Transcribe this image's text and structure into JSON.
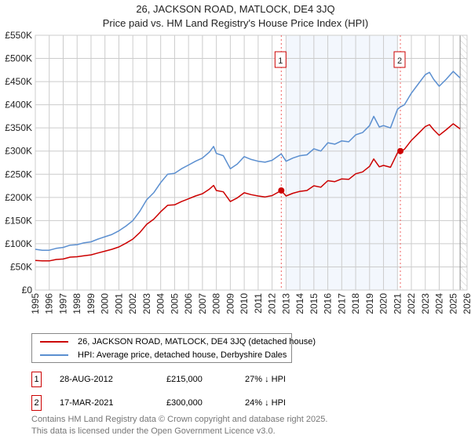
{
  "chart_data": {
    "type": "line",
    "title": "26, JACKSON ROAD, MATLOCK, DE4 3JQ",
    "subtitle": "Price paid vs. HM Land Registry's House Price Index (HPI)",
    "xlim": [
      1995,
      2026
    ],
    "ylim": [
      0,
      550000
    ],
    "x_ticks": [
      "1995",
      "1996",
      "1997",
      "1998",
      "1999",
      "2000",
      "2001",
      "2002",
      "2003",
      "2004",
      "2005",
      "2006",
      "2007",
      "2008",
      "2009",
      "2010",
      "2011",
      "2012",
      "2013",
      "2014",
      "2015",
      "2016",
      "2017",
      "2018",
      "2019",
      "2020",
      "2021",
      "2022",
      "2023",
      "2024",
      "2025",
      "2026"
    ],
    "y_ticks": [
      {
        "v": 0,
        "label": "£0"
      },
      {
        "v": 50000,
        "label": "£50K"
      },
      {
        "v": 100000,
        "label": "£100K"
      },
      {
        "v": 150000,
        "label": "£150K"
      },
      {
        "v": 200000,
        "label": "£200K"
      },
      {
        "v": 250000,
        "label": "£250K"
      },
      {
        "v": 300000,
        "label": "£300K"
      },
      {
        "v": 350000,
        "label": "£350K"
      },
      {
        "v": 400000,
        "label": "£400K"
      },
      {
        "v": 450000,
        "label": "£450K"
      },
      {
        "v": 500000,
        "label": "£500K"
      },
      {
        "v": 550000,
        "label": "£550K"
      }
    ],
    "grid": true,
    "x": [
      1995,
      1995.5,
      1996,
      1996.5,
      1997,
      1997.5,
      1998,
      1998.5,
      1999,
      1999.5,
      2000,
      2000.5,
      2001,
      2001.5,
      2002,
      2002.5,
      2003,
      2003.5,
      2004,
      2004.5,
      2005,
      2005.5,
      2006,
      2006.5,
      2007,
      2007.5,
      2007.8,
      2008,
      2008.5,
      2009,
      2009.5,
      2010,
      2010.5,
      2011,
      2011.5,
      2012,
      2012.66,
      2013,
      2013.5,
      2014,
      2014.5,
      2015,
      2015.5,
      2016,
      2016.5,
      2017,
      2017.5,
      2018,
      2018.5,
      2019,
      2019.3,
      2019.7,
      2020,
      2020.5,
      2021,
      2021.2,
      2021.5,
      2022,
      2022.5,
      2023,
      2023.3,
      2023.6,
      2024,
      2024.5,
      2025,
      2025.5
    ],
    "series": [
      {
        "name": "26, JACKSON ROAD, MATLOCK, DE4 3JQ (detached house)",
        "color": "#cc0000",
        "values": [
          64,
          63,
          63,
          66,
          67,
          71,
          72,
          74,
          76,
          80,
          84,
          88,
          93,
          101,
          110,
          124,
          142,
          153,
          169,
          183,
          184,
          191,
          197,
          203,
          208,
          218,
          226,
          215,
          212,
          191,
          199,
          210,
          206,
          203,
          201,
          204,
          215,
          203,
          209,
          213,
          215,
          225,
          222,
          236,
          234,
          240,
          239,
          251,
          255,
          267,
          283,
          266,
          269,
          265,
          296,
          300,
          304,
          323,
          338,
          353,
          357,
          346,
          334,
          346,
          359,
          348
        ]
      },
      {
        "name": "HPI: Average price, detached house, Derbyshire Dales",
        "color": "#5b8fd0",
        "values": [
          88,
          86,
          86,
          90,
          92,
          97,
          98,
          102,
          104,
          110,
          115,
          120,
          128,
          138,
          150,
          170,
          195,
          210,
          232,
          250,
          252,
          262,
          270,
          278,
          285,
          298,
          310,
          295,
          290,
          262,
          272,
          288,
          282,
          278,
          276,
          280,
          294,
          278,
          285,
          290,
          292,
          305,
          300,
          318,
          315,
          322,
          320,
          335,
          340,
          355,
          375,
          352,
          355,
          350,
          390,
          395,
          400,
          425,
          445,
          465,
          470,
          455,
          440,
          455,
          472,
          458
        ]
      }
    ],
    "value_unit": "thousand GBP",
    "sales": [
      {
        "label": "1",
        "x": 2012.66,
        "value": 215000,
        "date": "28-AUG-2012",
        "price": "£215,000",
        "hpi": "27% ↓ HPI"
      },
      {
        "label": "2",
        "x": 2021.21,
        "value": 300000,
        "date": "17-MAR-2021",
        "price": "£300,000",
        "hpi": "24% ↓ HPI"
      }
    ],
    "shaded_range": [
      2013,
      2021
    ],
    "forecast_from": 2025.5
  },
  "footer": [
    "Contains HM Land Registry data © Crown copyright and database right 2025.",
    "This data is licensed under the Open Government Licence v3.0."
  ]
}
